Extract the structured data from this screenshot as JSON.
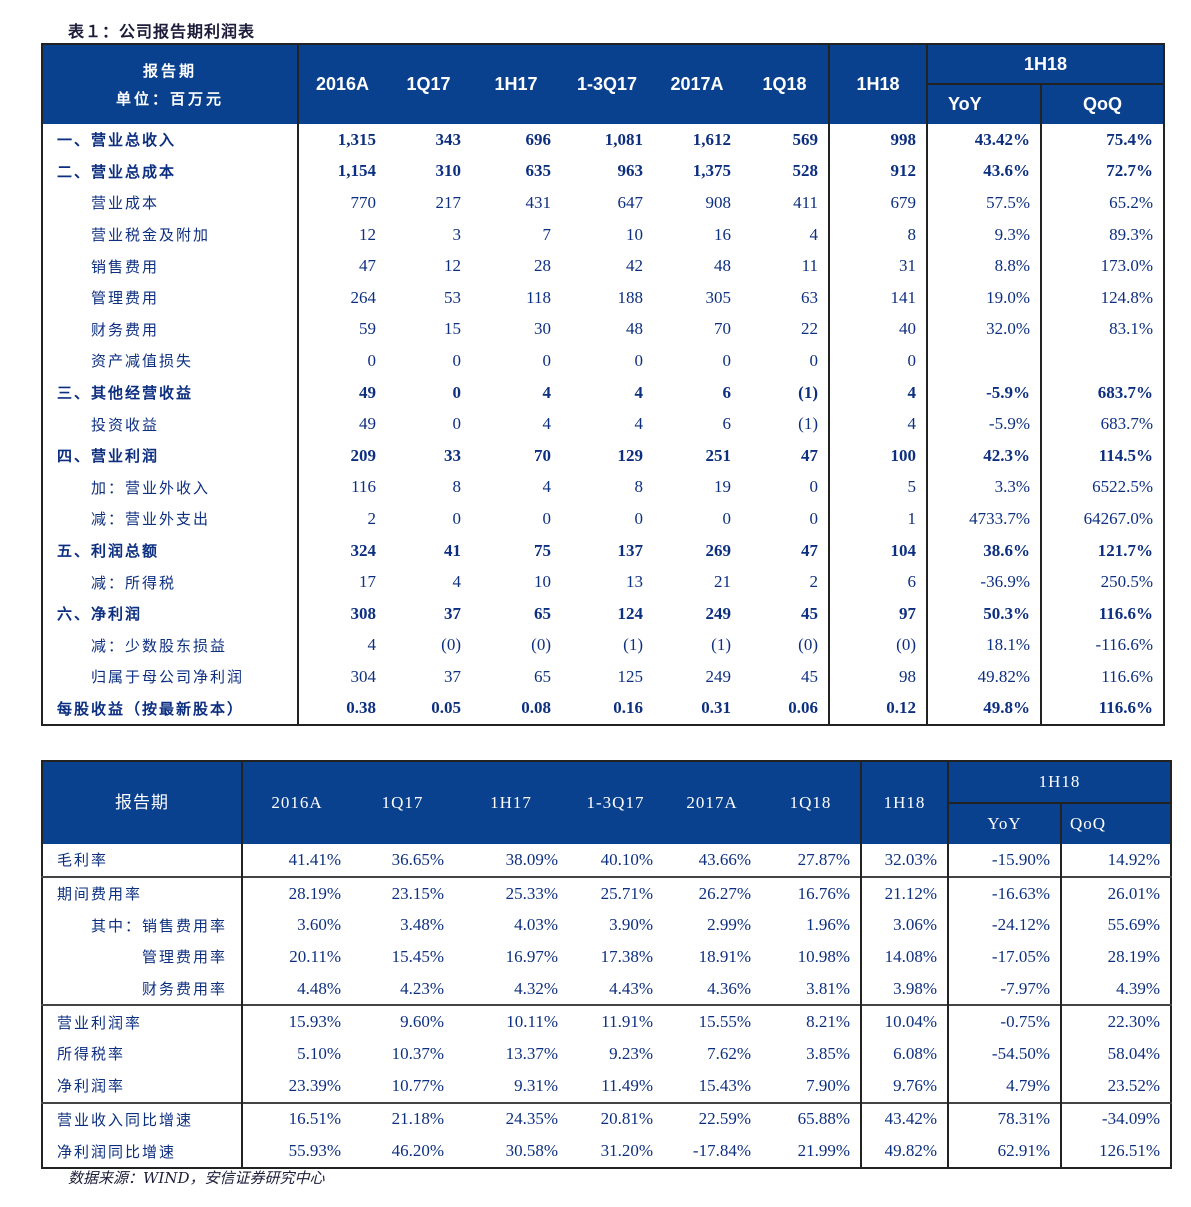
{
  "table1": {
    "title": "表１：公司报告期利润表",
    "header_label": "报告期",
    "unit_label": "单位：百万元",
    "columns": [
      "2016A",
      "1Q17",
      "1H17",
      "1-3Q17",
      "2017A",
      "1Q18",
      "1H18"
    ],
    "group_label": "1H18",
    "sub_columns": [
      "YoY",
      "QoQ"
    ],
    "rows": [
      {
        "label": "一、营业总收入",
        "bold": true,
        "values": [
          "1,315",
          "343",
          "696",
          "1,081",
          "1,612",
          "569",
          "998",
          "43.42%",
          "75.4%"
        ]
      },
      {
        "label": "二、营业总成本",
        "bold": true,
        "values": [
          "1,154",
          "310",
          "635",
          "963",
          "1,375",
          "528",
          "912",
          "43.6%",
          "72.7%"
        ]
      },
      {
        "label": "　　营业成本",
        "values": [
          "770",
          "217",
          "431",
          "647",
          "908",
          "411",
          "679",
          "57.5%",
          "65.2%"
        ]
      },
      {
        "label": "　　营业税金及附加",
        "values": [
          "12",
          "3",
          "7",
          "10",
          "16",
          "4",
          "8",
          "9.3%",
          "89.3%"
        ]
      },
      {
        "label": "　　销售费用",
        "values": [
          "47",
          "12",
          "28",
          "42",
          "48",
          "11",
          "31",
          "8.8%",
          "173.0%"
        ]
      },
      {
        "label": "　　管理费用",
        "values": [
          "264",
          "53",
          "118",
          "188",
          "305",
          "63",
          "141",
          "19.0%",
          "124.8%"
        ]
      },
      {
        "label": "　　财务费用",
        "values": [
          "59",
          "15",
          "30",
          "48",
          "70",
          "22",
          "40",
          "32.0%",
          "83.1%"
        ]
      },
      {
        "label": "　　资产减值损失",
        "values": [
          "0",
          "0",
          "0",
          "0",
          "0",
          "0",
          "0",
          "",
          ""
        ]
      },
      {
        "label": "三、其他经营收益",
        "bold": true,
        "values": [
          "49",
          "0",
          "4",
          "4",
          "6",
          "(1)",
          "4",
          "-5.9%",
          "683.7%"
        ]
      },
      {
        "label": "　　投资收益",
        "values": [
          "49",
          "0",
          "4",
          "4",
          "6",
          "(1)",
          "4",
          "-5.9%",
          "683.7%"
        ]
      },
      {
        "label": "四、营业利润",
        "bold": true,
        "values": [
          "209",
          "33",
          "70",
          "129",
          "251",
          "47",
          "100",
          "42.3%",
          "114.5%"
        ]
      },
      {
        "label": "　　加：营业外收入",
        "values": [
          "116",
          "8",
          "4",
          "8",
          "19",
          "0",
          "5",
          "3.3%",
          "6522.5%"
        ]
      },
      {
        "label": "　　减：营业外支出",
        "values": [
          "2",
          "0",
          "0",
          "0",
          "0",
          "0",
          "1",
          "4733.7%",
          "64267.0%"
        ]
      },
      {
        "label": "五、利润总额",
        "bold": true,
        "values": [
          "324",
          "41",
          "75",
          "137",
          "269",
          "47",
          "104",
          "38.6%",
          "121.7%"
        ]
      },
      {
        "label": "　　减：所得税",
        "values": [
          "17",
          "4",
          "10",
          "13",
          "21",
          "2",
          "6",
          "-36.9%",
          "250.5%"
        ]
      },
      {
        "label": "六、净利润",
        "bold": true,
        "values": [
          "308",
          "37",
          "65",
          "124",
          "249",
          "45",
          "97",
          "50.3%",
          "116.6%"
        ]
      },
      {
        "label": "　　减：少数股东损益",
        "values": [
          "4",
          "(0)",
          "(0)",
          "(1)",
          "(1)",
          "(0)",
          "(0)",
          "18.1%",
          "-116.6%"
        ]
      },
      {
        "label": "　　归属于母公司净利润",
        "values": [
          "304",
          "37",
          "65",
          "125",
          "249",
          "45",
          "98",
          "49.82%",
          "116.6%"
        ]
      },
      {
        "label": "每股收益（按最新股本）",
        "bold": true,
        "values": [
          "0.38",
          "0.05",
          "0.08",
          "0.16",
          "0.31",
          "0.06",
          "0.12",
          "49.8%",
          "116.6%"
        ]
      }
    ]
  },
  "table2": {
    "header_label": "报告期",
    "columns": [
      "2016A",
      "1Q17",
      "1H17",
      "1-3Q17",
      "2017A",
      "1Q18",
      "1H18"
    ],
    "group_label": "1H18",
    "sub_columns": [
      "YoY",
      "QoQ"
    ],
    "rows": [
      {
        "label": "毛利率",
        "values": [
          "41.41%",
          "36.65%",
          "38.09%",
          "40.10%",
          "43.66%",
          "27.87%",
          "32.03%",
          "-15.90%",
          "14.92%"
        ]
      },
      {
        "label": "期间费用率",
        "sep": true,
        "values": [
          "28.19%",
          "23.15%",
          "25.33%",
          "25.71%",
          "26.27%",
          "16.76%",
          "21.12%",
          "-16.63%",
          "26.01%"
        ]
      },
      {
        "label": "　　其中：销售费用率",
        "values": [
          "3.60%",
          "3.48%",
          "4.03%",
          "3.90%",
          "2.99%",
          "1.96%",
          "3.06%",
          "-24.12%",
          "55.69%"
        ]
      },
      {
        "label": "　　　　　管理费用率",
        "values": [
          "20.11%",
          "15.45%",
          "16.97%",
          "17.38%",
          "18.91%",
          "10.98%",
          "14.08%",
          "-17.05%",
          "28.19%"
        ]
      },
      {
        "label": "　　　　　财务费用率",
        "values": [
          "4.48%",
          "4.23%",
          "4.32%",
          "4.43%",
          "4.36%",
          "3.81%",
          "3.98%",
          "-7.97%",
          "4.39%"
        ]
      },
      {
        "label": "营业利润率",
        "sep": true,
        "values": [
          "15.93%",
          "9.60%",
          "10.11%",
          "11.91%",
          "15.55%",
          "8.21%",
          "10.04%",
          "-0.75%",
          "22.30%"
        ]
      },
      {
        "label": "所得税率",
        "values": [
          "5.10%",
          "10.37%",
          "13.37%",
          "9.23%",
          "7.62%",
          "3.85%",
          "6.08%",
          "-54.50%",
          "58.04%"
        ]
      },
      {
        "label": "净利润率",
        "values": [
          "23.39%",
          "10.77%",
          "9.31%",
          "11.49%",
          "15.43%",
          "7.90%",
          "9.76%",
          "4.79%",
          "23.52%"
        ]
      },
      {
        "label": "营业收入同比增速",
        "sep": true,
        "values": [
          "16.51%",
          "21.18%",
          "24.35%",
          "20.81%",
          "22.59%",
          "65.88%",
          "43.42%",
          "78.31%",
          "-34.09%"
        ]
      },
      {
        "label": "净利润同比增速",
        "values": [
          "55.93%",
          "46.20%",
          "30.58%",
          "31.20%",
          "-17.84%",
          "21.99%",
          "49.82%",
          "62.91%",
          "126.51%"
        ]
      }
    ]
  },
  "source": "数据来源：WIND，安信证券研究中心",
  "colors": {
    "header_bg": "#0a418e",
    "text": "#0d2f80"
  }
}
